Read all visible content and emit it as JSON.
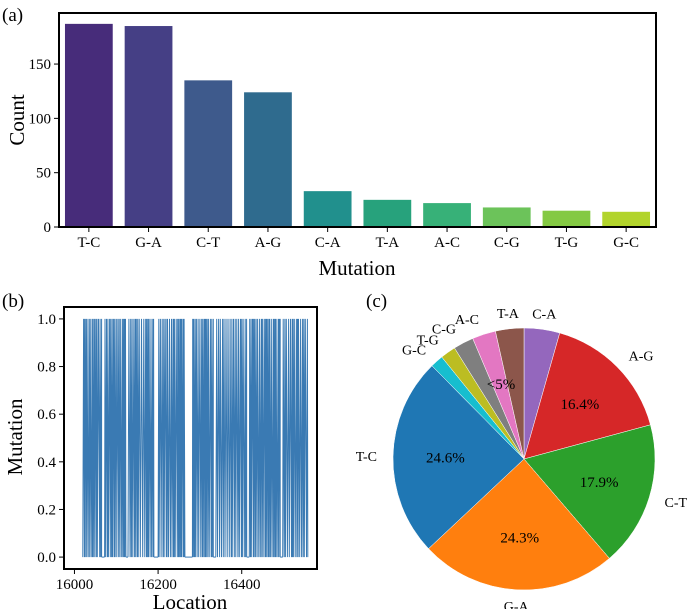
{
  "panel_labels": {
    "a": "(a)",
    "b": "(b)",
    "c": "(c)"
  },
  "chart_data": [
    {
      "panel": "(a)",
      "type": "bar",
      "title": "",
      "xlabel": "Mutation",
      "ylabel": "Count",
      "categories": [
        "T-C",
        "G-A",
        "C-T",
        "A-G",
        "C-A",
        "T-A",
        "A-C",
        "C-G",
        "T-G",
        "G-C"
      ],
      "values": [
        187,
        185,
        135,
        124,
        33,
        25,
        22,
        18,
        15,
        14
      ],
      "ylim": [
        0,
        197
      ],
      "yticks": [
        0,
        50,
        100,
        150
      ],
      "colors": [
        "#472c7a",
        "#453f85",
        "#3e5a8c",
        "#2f6b8e",
        "#21908d",
        "#27a27c",
        "#37b178",
        "#6cc35a",
        "#84c943",
        "#b2d42c"
      ]
    },
    {
      "panel": "(b)",
      "type": "line",
      "title": "",
      "xlabel": "Location",
      "ylabel": "Mutation",
      "xlim": [
        15975,
        16580
      ],
      "ylim": [
        -0.05,
        1.05
      ],
      "xticks": [
        16000,
        16200,
        16400
      ],
      "yticks": [
        0.0,
        0.2,
        0.4,
        0.6,
        0.8,
        1.0
      ],
      "yticklabels": [
        "0.0",
        "0.2",
        "0.4",
        "0.6",
        "0.8",
        "1.0"
      ],
      "series": [
        {
          "name": "mutation",
          "color": "#3a7ab3",
          "dense_segments": [
            [
              16020,
              16065
            ],
            [
              16072,
              16123
            ],
            [
              16128,
              16190
            ],
            [
              16200,
              16264
            ],
            [
              16282,
              16332
            ],
            [
              16338,
              16412
            ],
            [
              16418,
              16492
            ],
            [
              16498,
              16558
            ]
          ]
        }
      ]
    },
    {
      "panel": "(c)",
      "type": "pie",
      "title": "",
      "slices": [
        {
          "label": "C-A",
          "value": 4.4,
          "color": "#9467bd"
        },
        {
          "label": "A-G",
          "value": 16.4,
          "color": "#d62728",
          "pct_label": "16.4%"
        },
        {
          "label": "C-T",
          "value": 17.9,
          "color": "#2ca02c",
          "pct_label": "17.9%"
        },
        {
          "label": "G-A",
          "value": 24.3,
          "color": "#ff7f0e",
          "pct_label": "24.3%"
        },
        {
          "label": "T-C",
          "value": 24.6,
          "color": "#1f77b4",
          "pct_label": "24.6%"
        },
        {
          "label": "G-C",
          "value": 1.6,
          "color": "#17becf"
        },
        {
          "label": "T-G",
          "value": 1.9,
          "color": "#bcbd22"
        },
        {
          "label": "C-G",
          "value": 2.5,
          "color": "#7f7f7f"
        },
        {
          "label": "A-C",
          "value": 2.9,
          "color": "#e377c2"
        },
        {
          "label": "T-A",
          "value": 3.5,
          "color": "#8c564b"
        }
      ],
      "small_slices_label": "<5%"
    }
  ]
}
